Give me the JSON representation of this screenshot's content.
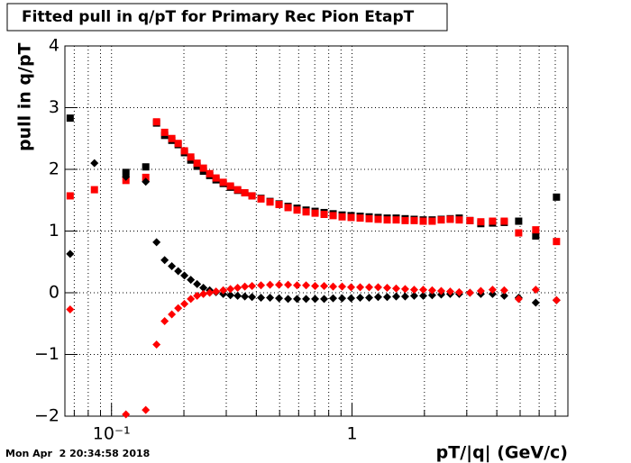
{
  "chart_data": {
    "type": "scatter",
    "title": "Fitted pull in q/pT for Primary Rec Pion EtapT",
    "ylabel": "pull in q/pT",
    "xlabel": "pT/|q| (GeV/c)",
    "timestamp": "Mon Apr  2 20:34:58 2018",
    "xscale": "log",
    "grid": true,
    "xlim": [
      0.064,
      7.9
    ],
    "ylim": [
      -2,
      4
    ],
    "xticks": [
      {
        "value": 0.1,
        "label": "10⁻¹"
      },
      1
    ],
    "xminorticks": [
      0.07,
      0.08,
      0.09,
      0.2,
      0.3,
      0.4,
      0.5,
      0.6,
      0.7,
      0.8,
      0.9,
      2,
      3,
      4,
      5,
      6,
      7
    ],
    "yticks": [
      {
        "value": -2,
        "label": "−2"
      },
      {
        "value": -1,
        "label": "−1"
      },
      0,
      1,
      2,
      3,
      4
    ],
    "x": [
      0.0673,
      0.0849,
      0.1148,
      0.1388,
      0.1539,
      0.1663,
      0.1781,
      0.1893,
      0.201,
      0.2136,
      0.2269,
      0.241,
      0.256,
      0.272,
      0.2914,
      0.3122,
      0.3345,
      0.3583,
      0.3839,
      0.4183,
      0.4561,
      0.4972,
      0.5421,
      0.5908,
      0.6442,
      0.7022,
      0.7655,
      0.8344,
      0.9096,
      0.9914,
      1.081,
      1.178,
      1.284,
      1.4,
      1.526,
      1.663,
      1.813,
      1.977,
      2.154,
      2.349,
      2.56,
      2.791,
      3.094,
      3.432,
      3.84,
      4.295,
      4.931,
      5.808,
      7.083
    ],
    "series": [
      {
        "color": "#000000",
        "marker": "square",
        "values": [
          2.83,
          null,
          1.95,
          2.04,
          2.75,
          2.55,
          2.47,
          2.4,
          2.27,
          2.15,
          2.05,
          1.97,
          1.9,
          1.83,
          1.77,
          1.71,
          1.66,
          1.62,
          1.57,
          1.53,
          1.48,
          1.44,
          1.4,
          1.37,
          1.34,
          1.32,
          1.3,
          1.28,
          1.26,
          1.25,
          1.24,
          1.23,
          1.22,
          1.21,
          1.21,
          1.2,
          1.19,
          1.18,
          1.18,
          1.19,
          1.2,
          1.21,
          1.17,
          1.12,
          1.13,
          1.14,
          1.16,
          0.92,
          1.55
        ]
      },
      {
        "color": "#ff0000",
        "marker": "square",
        "values": [
          1.57,
          1.67,
          1.82,
          1.87,
          2.77,
          2.6,
          2.5,
          2.42,
          2.3,
          2.2,
          2.1,
          2.02,
          1.93,
          1.86,
          1.79,
          1.73,
          1.67,
          1.62,
          1.57,
          1.52,
          1.47,
          1.43,
          1.38,
          1.34,
          1.31,
          1.29,
          1.27,
          1.25,
          1.23,
          1.22,
          1.21,
          1.2,
          1.19,
          1.18,
          1.18,
          1.17,
          1.17,
          1.16,
          1.16,
          1.18,
          1.19,
          1.18,
          1.17,
          1.15,
          1.16,
          1.16,
          0.97,
          1.02,
          0.83
        ]
      },
      {
        "color": "#000000",
        "marker": "diamond",
        "values": [
          0.63,
          2.1,
          1.88,
          1.8,
          0.82,
          0.53,
          0.43,
          0.35,
          0.28,
          0.21,
          0.14,
          0.08,
          0.04,
          0.01,
          -0.02,
          -0.04,
          -0.05,
          -0.06,
          -0.07,
          -0.08,
          -0.08,
          -0.09,
          -0.1,
          -0.1,
          -0.1,
          -0.1,
          -0.1,
          -0.09,
          -0.09,
          -0.09,
          -0.08,
          -0.08,
          -0.07,
          -0.07,
          -0.06,
          -0.06,
          -0.05,
          -0.05,
          -0.04,
          -0.03,
          -0.02,
          -0.02,
          0.0,
          -0.02,
          -0.02,
          -0.05,
          -0.08,
          -0.16,
          -0.12
        ]
      },
      {
        "color": "#ff0000",
        "marker": "diamond",
        "values": [
          -0.27,
          null,
          -1.97,
          -1.9,
          -0.84,
          -0.46,
          -0.35,
          -0.25,
          -0.18,
          -0.1,
          -0.05,
          -0.02,
          0.0,
          0.02,
          0.04,
          0.06,
          0.08,
          0.1,
          0.11,
          0.12,
          0.13,
          0.13,
          0.13,
          0.12,
          0.12,
          0.11,
          0.11,
          0.1,
          0.1,
          0.09,
          0.09,
          0.09,
          0.09,
          0.08,
          0.07,
          0.06,
          0.05,
          0.05,
          0.04,
          0.03,
          0.02,
          0.01,
          0.0,
          0.03,
          0.05,
          0.04,
          -0.1,
          0.05,
          -0.12
        ]
      }
    ]
  }
}
